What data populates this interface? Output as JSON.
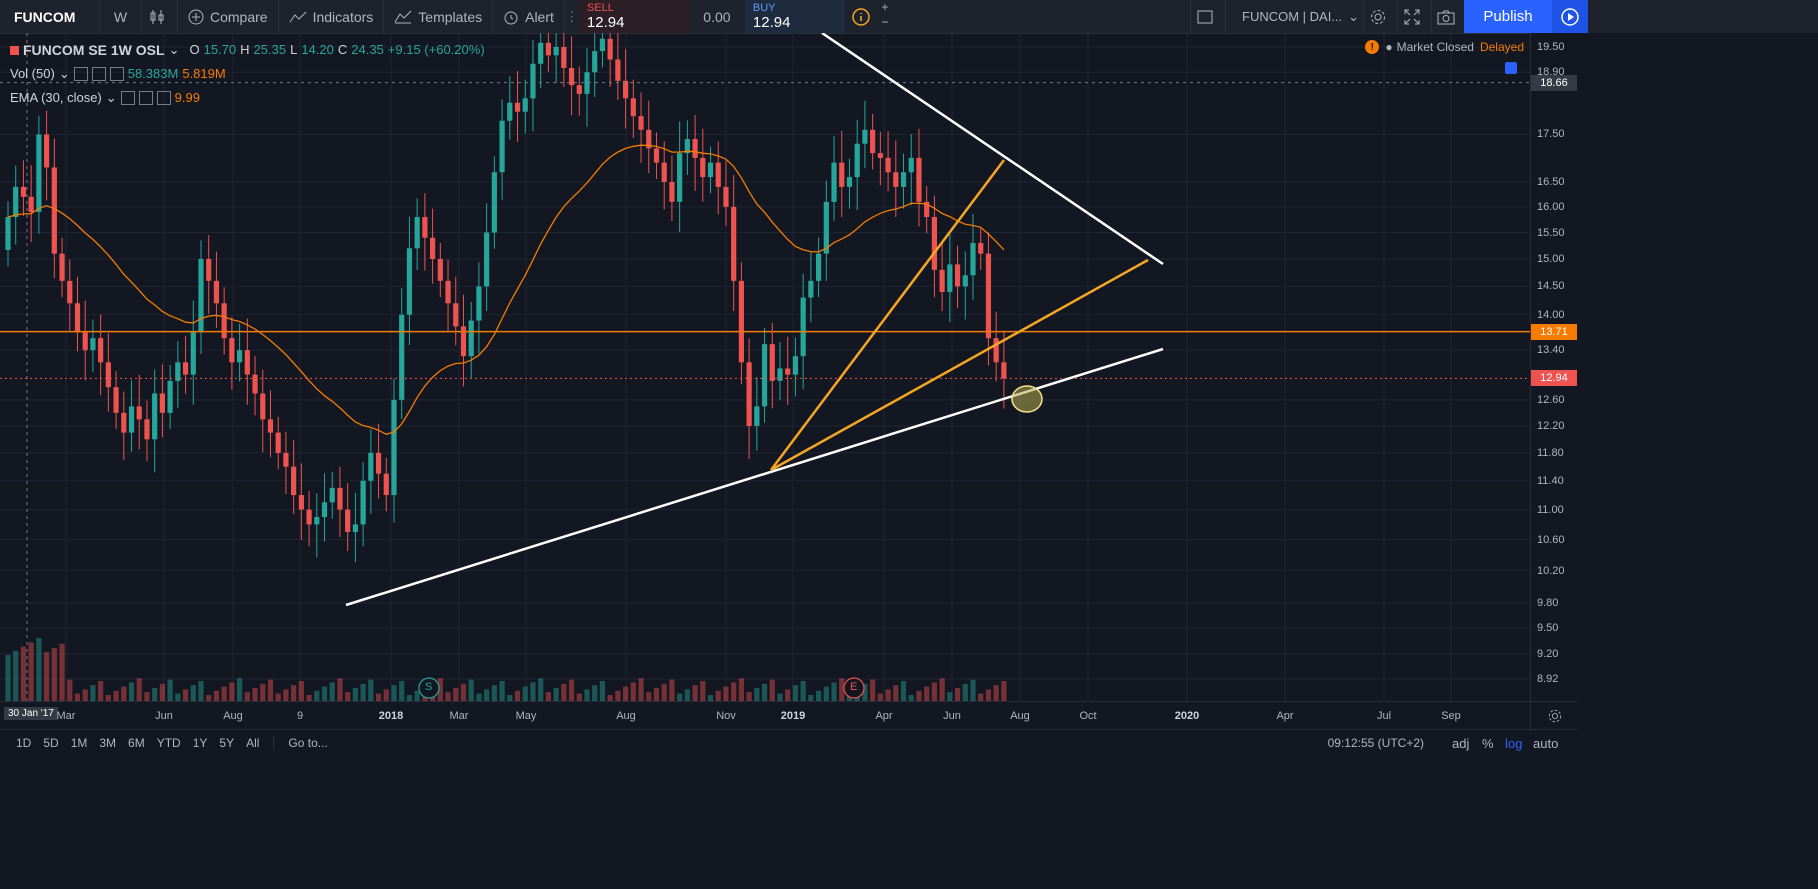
{
  "toolbar": {
    "symbol": "FUNCOM",
    "interval": "W",
    "compare": "Compare",
    "indicators": "Indicators",
    "templates": "Templates",
    "alert": "Alert",
    "sell_label": "SELL",
    "sell_price": "12.94",
    "spread": "0.00",
    "buy_label": "BUY",
    "buy_price": "12.94",
    "plus": "+",
    "minus": "−",
    "layout_name": "FUNCOM | DAI...",
    "publish": "Publish"
  },
  "legend": {
    "title": "FUNCOM SE  1W  OSL",
    "o_label": "O",
    "o": "15.70",
    "h_label": "H",
    "h": "25.35",
    "l_label": "L",
    "l": "14.20",
    "c_label": "C",
    "c": "24.35",
    "change": "+9.15 (+60.20%)",
    "vol_label": "Vol (50)",
    "vol1": "58.383M",
    "vol2": "5.819M",
    "ema_label": "EMA (30, close)",
    "ema_value": "9.99"
  },
  "market_status": {
    "text": "Market Closed",
    "delay": "Delayed"
  },
  "price_axis": {
    "ticks": [
      "19.50",
      "18.90",
      "17.50",
      "16.50",
      "16.00",
      "15.50",
      "15.00",
      "14.50",
      "14.00",
      "13.40",
      "12.60",
      "12.20",
      "11.80",
      "11.40",
      "11.00",
      "10.60",
      "10.20",
      "9.80",
      "9.50",
      "9.20",
      "8.92"
    ],
    "crosshair_price": "18.66",
    "level_price": "13.71",
    "last_price": "12.94"
  },
  "time_axis": {
    "cursor_label": "30 Jan '17",
    "ticks": [
      {
        "t": "Mar",
        "b": false
      },
      {
        "t": "Jun",
        "b": false
      },
      {
        "t": "Aug",
        "b": false
      },
      {
        "t": "9",
        "b": false
      },
      {
        "t": "2018",
        "b": true
      },
      {
        "t": "Mar",
        "b": false
      },
      {
        "t": "May",
        "b": false
      },
      {
        "t": "Aug",
        "b": false
      },
      {
        "t": "Nov",
        "b": false
      },
      {
        "t": "2019",
        "b": true
      },
      {
        "t": "Apr",
        "b": false
      },
      {
        "t": "Jun",
        "b": false
      },
      {
        "t": "Aug",
        "b": false
      },
      {
        "t": "Oct",
        "b": false
      },
      {
        "t": "2020",
        "b": true
      },
      {
        "t": "Apr",
        "b": false
      },
      {
        "t": "Jul",
        "b": false
      },
      {
        "t": "Sep",
        "b": false
      }
    ]
  },
  "events": {
    "split": "S",
    "earnings": "E"
  },
  "bottom_bar": {
    "ranges": [
      "1D",
      "5D",
      "1M",
      "3M",
      "6M",
      "YTD",
      "1Y",
      "5Y",
      "All"
    ],
    "goto": "Go to...",
    "clock": "09:12:55 (UTC+2)",
    "adj": "adj",
    "percent": "%",
    "log": "log",
    "auto": "auto"
  },
  "colors": {
    "up": "#26a69a",
    "down": "#ef5350",
    "ema": "#f57c00",
    "trendline": "#ffffff",
    "publish": "#2962ff"
  },
  "chart_data": {
    "type": "candlestick",
    "interval": "1W",
    "log_scale": true,
    "y_range": [
      8.7,
      19.7
    ],
    "horizontal_levels": [
      13.71,
      12.94
    ],
    "candles_close": [
      15.8,
      16.4,
      16.2,
      15.9,
      17.5,
      16.8,
      15.1,
      14.6,
      14.2,
      13.7,
      13.4,
      13.6,
      13.2,
      12.8,
      12.4,
      12.1,
      12.5,
      12.3,
      12.0,
      12.7,
      12.4,
      12.9,
      13.2,
      13.0,
      13.7,
      15.0,
      14.6,
      14.2,
      13.6,
      13.2,
      13.4,
      13.0,
      12.7,
      12.3,
      12.1,
      11.8,
      11.6,
      11.2,
      11.0,
      10.8,
      10.9,
      11.1,
      11.3,
      11.0,
      10.7,
      10.8,
      11.4,
      11.8,
      11.5,
      11.2,
      12.6,
      14.0,
      15.2,
      15.8,
      15.4,
      15.0,
      14.6,
      14.2,
      13.8,
      13.3,
      13.9,
      14.5,
      15.5,
      16.7,
      17.8,
      18.2,
      18.0,
      18.3,
      19.1,
      19.6,
      19.3,
      19.5,
      19.0,
      18.6,
      18.4,
      18.9,
      19.4,
      19.7,
      19.2,
      18.7,
      18.3,
      17.9,
      17.6,
      17.2,
      16.9,
      16.5,
      16.1,
      17.1,
      17.4,
      17.0,
      16.6,
      16.9,
      16.4,
      16.0,
      14.6,
      13.2,
      12.2,
      12.5,
      13.5,
      12.9,
      13.1,
      13.0,
      13.3,
      14.3,
      14.6,
      15.1,
      16.1,
      16.9,
      16.4,
      16.6,
      17.3,
      17.6,
      17.1,
      17.0,
      16.7,
      16.4,
      16.7,
      17.0,
      16.1,
      15.8,
      14.8,
      14.4,
      14.9,
      14.5,
      14.7,
      15.3,
      15.1,
      13.6,
      13.2,
      12.94
    ]
  }
}
